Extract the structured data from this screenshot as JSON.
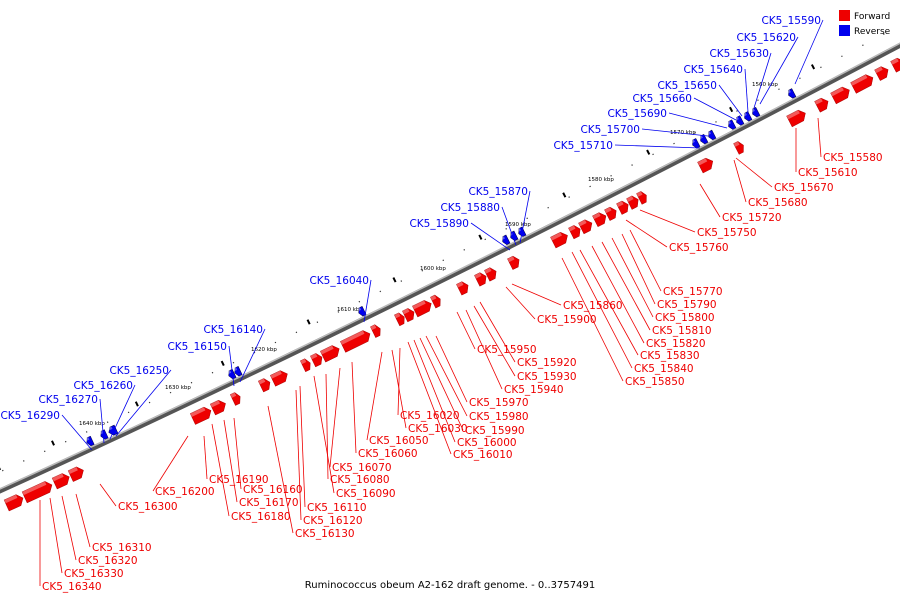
{
  "caption": "Ruminococcus obeum A2-162 draft genome. - 0..3757491",
  "legend": [
    {
      "label": "Forward",
      "color": "#ee0000"
    },
    {
      "label": "Reverse",
      "color": "#0000ee"
    }
  ],
  "colors": {
    "forward": "#ee0000",
    "reverse": "#0000ee",
    "backbone": "#888888"
  },
  "kbp_ticks": [
    "1560 kbp",
    "1570 kbp",
    "1580 kbp",
    "1590 kbp",
    "1600 kbp",
    "1610 kbp",
    "1620 kbp",
    "1630 kbp",
    "1640 kbp"
  ],
  "reverse_labels": [
    "CK5_15590",
    "CK5_15620",
    "CK5_15630",
    "CK5_15640",
    "CK5_15650",
    "CK5_15660",
    "CK5_15690",
    "CK5_15700",
    "CK5_15710",
    "CK5_15870",
    "CK5_15880",
    "CK5_15890",
    "CK5_16040",
    "CK5_16140",
    "CK5_16150",
    "CK5_16250",
    "CK5_16260",
    "CK5_16270",
    "CK5_16290"
  ],
  "forward_labels": [
    "CK5_15580",
    "CK5_15610",
    "CK5_15670",
    "CK5_15680",
    "CK5_15720",
    "CK5_15750",
    "CK5_15760",
    "CK5_15770",
    "CK5_15790",
    "CK5_15800",
    "CK5_15810",
    "CK5_15820",
    "CK5_15830",
    "CK5_15840",
    "CK5_15850",
    "CK5_15860",
    "CK5_15900",
    "CK5_15920",
    "CK5_15930",
    "CK5_15940",
    "CK5_15950",
    "CK5_15970",
    "CK5_15980",
    "CK5_15990",
    "CK5_16000",
    "CK5_16010",
    "CK5_16020",
    "CK5_16030",
    "CK5_16050",
    "CK5_16060",
    "CK5_16070",
    "CK5_16080",
    "CK5_16090",
    "CK5_16110",
    "CK5_16120",
    "CK5_16130",
    "CK5_16160",
    "CK5_16170",
    "CK5_16180",
    "CK5_16190",
    "CK5_16200",
    "CK5_16300",
    "CK5_16310",
    "CK5_16320",
    "CK5_16330",
    "CK5_16340"
  ]
}
